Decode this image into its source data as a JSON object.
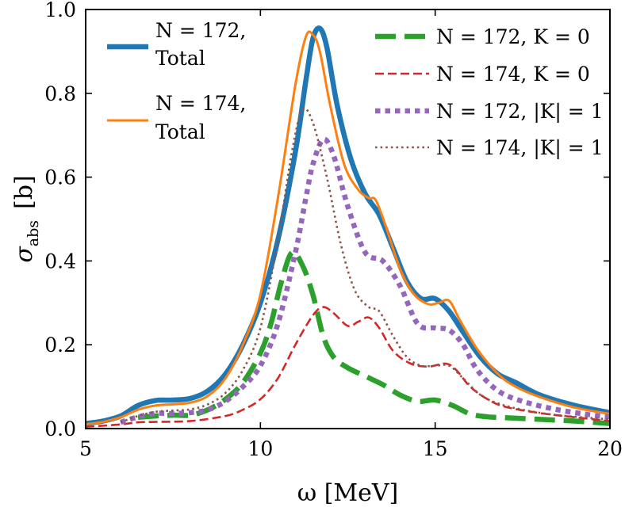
{
  "chart_data": {
    "type": "line",
    "title": "",
    "xlabel": "ω  [MeV]",
    "ylabel": "σ_abs  [b]",
    "ylabel_main": "σ",
    "ylabel_sub": "abs",
    "ylabel_unit": "[b]",
    "xlim": [
      5,
      20
    ],
    "ylim": [
      0.0,
      1.0
    ],
    "xticks": [
      5,
      10,
      15,
      20
    ],
    "xtick_labels": [
      "5",
      "10",
      "15",
      "20"
    ],
    "yticks": [
      0.0,
      0.2,
      0.4,
      0.6,
      0.8,
      1.0
    ],
    "ytick_labels": [
      "0.0",
      "0.2",
      "0.4",
      "0.6",
      "0.8",
      "1.0"
    ],
    "grid": false,
    "legend_placement": "top (two columns)",
    "series": [
      {
        "name": "N = 172, Total",
        "legend_line1": "N = 172,",
        "legend_line2": "Total",
        "color": "#1f77b4",
        "style": "solid-thick",
        "points": [
          [
            5,
            0.012
          ],
          [
            5.5,
            0.018
          ],
          [
            6,
            0.03
          ],
          [
            6.5,
            0.055
          ],
          [
            7,
            0.067
          ],
          [
            7.5,
            0.068
          ],
          [
            8,
            0.072
          ],
          [
            8.5,
            0.09
          ],
          [
            9,
            0.13
          ],
          [
            9.5,
            0.2
          ],
          [
            10,
            0.3
          ],
          [
            10.5,
            0.45
          ],
          [
            11,
            0.66
          ],
          [
            11.3,
            0.83
          ],
          [
            11.5,
            0.93
          ],
          [
            11.7,
            0.955
          ],
          [
            11.9,
            0.91
          ],
          [
            12.2,
            0.77
          ],
          [
            12.6,
            0.64
          ],
          [
            13,
            0.56
          ],
          [
            13.4,
            0.51
          ],
          [
            13.8,
            0.43
          ],
          [
            14.2,
            0.35
          ],
          [
            14.6,
            0.31
          ],
          [
            15,
            0.31
          ],
          [
            15.4,
            0.28
          ],
          [
            15.8,
            0.23
          ],
          [
            16.3,
            0.17
          ],
          [
            16.8,
            0.13
          ],
          [
            17.3,
            0.11
          ],
          [
            18,
            0.08
          ],
          [
            19,
            0.055
          ],
          [
            20,
            0.038
          ]
        ]
      },
      {
        "name": "N = 174, Total",
        "legend_line1": "N = 174,",
        "legend_line2": "Total",
        "color": "#ff7f0e",
        "style": "solid-thin",
        "points": [
          [
            5,
            0.01
          ],
          [
            5.5,
            0.016
          ],
          [
            6,
            0.027
          ],
          [
            6.5,
            0.045
          ],
          [
            7,
            0.055
          ],
          [
            7.5,
            0.058
          ],
          [
            8,
            0.062
          ],
          [
            8.5,
            0.078
          ],
          [
            9,
            0.12
          ],
          [
            9.5,
            0.2
          ],
          [
            10,
            0.32
          ],
          [
            10.5,
            0.55
          ],
          [
            11,
            0.82
          ],
          [
            11.3,
            0.935
          ],
          [
            11.5,
            0.94
          ],
          [
            11.7,
            0.9
          ],
          [
            12,
            0.77
          ],
          [
            12.4,
            0.63
          ],
          [
            12.8,
            0.57
          ],
          [
            13.1,
            0.55
          ],
          [
            13.3,
            0.545
          ],
          [
            13.6,
            0.48
          ],
          [
            14,
            0.38
          ],
          [
            14.4,
            0.32
          ],
          [
            14.8,
            0.297
          ],
          [
            15.1,
            0.3
          ],
          [
            15.4,
            0.305
          ],
          [
            15.7,
            0.26
          ],
          [
            16.2,
            0.19
          ],
          [
            16.8,
            0.13
          ],
          [
            17.3,
            0.1
          ],
          [
            18,
            0.075
          ],
          [
            19,
            0.05
          ],
          [
            20,
            0.035
          ]
        ]
      },
      {
        "name": "N = 172, K = 0",
        "legend_line1": "N = 172, K = 0",
        "color": "#2ca02c",
        "style": "dashed-thick",
        "points": [
          [
            6.5,
            0.027
          ],
          [
            7,
            0.03
          ],
          [
            7.5,
            0.032
          ],
          [
            8,
            0.032
          ],
          [
            8.5,
            0.045
          ],
          [
            9,
            0.07
          ],
          [
            9.5,
            0.11
          ],
          [
            10,
            0.18
          ],
          [
            10.3,
            0.25
          ],
          [
            10.6,
            0.35
          ],
          [
            10.9,
            0.42
          ],
          [
            11.2,
            0.39
          ],
          [
            11.5,
            0.32
          ],
          [
            11.8,
            0.22
          ],
          [
            12.1,
            0.17
          ],
          [
            12.5,
            0.145
          ],
          [
            13,
            0.125
          ],
          [
            13.5,
            0.105
          ],
          [
            14,
            0.08
          ],
          [
            14.5,
            0.065
          ],
          [
            15,
            0.068
          ],
          [
            15.5,
            0.055
          ],
          [
            16,
            0.035
          ],
          [
            16.5,
            0.028
          ],
          [
            17,
            0.026
          ],
          [
            18,
            0.022
          ],
          [
            19,
            0.018
          ],
          [
            20,
            0.012
          ]
        ]
      },
      {
        "name": "N = 174, K = 0",
        "legend_line1": "N = 174, K = 0",
        "color": "#d62728",
        "style": "dashed-thin",
        "points": [
          [
            5,
            0.004
          ],
          [
            6,
            0.01
          ],
          [
            6.5,
            0.015
          ],
          [
            7,
            0.016
          ],
          [
            8,
            0.018
          ],
          [
            9,
            0.03
          ],
          [
            9.5,
            0.045
          ],
          [
            10,
            0.07
          ],
          [
            10.5,
            0.12
          ],
          [
            11,
            0.2
          ],
          [
            11.5,
            0.27
          ],
          [
            11.8,
            0.29
          ],
          [
            12.1,
            0.275
          ],
          [
            12.5,
            0.245
          ],
          [
            12.8,
            0.255
          ],
          [
            13.1,
            0.265
          ],
          [
            13.4,
            0.24
          ],
          [
            13.8,
            0.185
          ],
          [
            14.3,
            0.155
          ],
          [
            14.8,
            0.148
          ],
          [
            15.3,
            0.155
          ],
          [
            15.6,
            0.14
          ],
          [
            16,
            0.1
          ],
          [
            16.5,
            0.07
          ],
          [
            17,
            0.052
          ],
          [
            18,
            0.037
          ],
          [
            19,
            0.027
          ],
          [
            20,
            0.018
          ]
        ]
      },
      {
        "name": "N = 172, |K| = 1",
        "legend_line1": "N = 172, |K| = 1",
        "color": "#9467bd",
        "style": "dotted-thick",
        "points": [
          [
            6,
            0.015
          ],
          [
            6.5,
            0.028
          ],
          [
            7,
            0.036
          ],
          [
            7.5,
            0.036
          ],
          [
            8,
            0.038
          ],
          [
            8.5,
            0.045
          ],
          [
            9,
            0.065
          ],
          [
            9.5,
            0.1
          ],
          [
            10,
            0.15
          ],
          [
            10.5,
            0.25
          ],
          [
            11,
            0.42
          ],
          [
            11.3,
            0.55
          ],
          [
            11.5,
            0.63
          ],
          [
            11.8,
            0.69
          ],
          [
            12.1,
            0.65
          ],
          [
            12.5,
            0.53
          ],
          [
            13,
            0.42
          ],
          [
            13.5,
            0.4
          ],
          [
            14,
            0.34
          ],
          [
            14.5,
            0.25
          ],
          [
            15,
            0.24
          ],
          [
            15.4,
            0.235
          ],
          [
            15.8,
            0.2
          ],
          [
            16.2,
            0.14
          ],
          [
            16.8,
            0.09
          ],
          [
            17.5,
            0.065
          ],
          [
            18.5,
            0.045
          ],
          [
            19.5,
            0.032
          ],
          [
            20,
            0.028
          ]
        ]
      },
      {
        "name": "N = 174, |K| = 1",
        "legend_line1": "N = 174, |K| = 1",
        "color": "#8c564b",
        "style": "dotted-thin",
        "points": [
          [
            6,
            0.015
          ],
          [
            6.5,
            0.03
          ],
          [
            7,
            0.04
          ],
          [
            7.5,
            0.043
          ],
          [
            8,
            0.046
          ],
          [
            8.5,
            0.058
          ],
          [
            9,
            0.085
          ],
          [
            9.5,
            0.14
          ],
          [
            10,
            0.24
          ],
          [
            10.5,
            0.45
          ],
          [
            10.9,
            0.66
          ],
          [
            11.2,
            0.76
          ],
          [
            11.5,
            0.73
          ],
          [
            11.9,
            0.6
          ],
          [
            12.3,
            0.44
          ],
          [
            12.7,
            0.33
          ],
          [
            13.1,
            0.29
          ],
          [
            13.4,
            0.28
          ],
          [
            13.8,
            0.22
          ],
          [
            14.2,
            0.17
          ],
          [
            14.6,
            0.15
          ],
          [
            15,
            0.15
          ],
          [
            15.4,
            0.15
          ],
          [
            15.8,
            0.12
          ],
          [
            16.3,
            0.08
          ],
          [
            16.8,
            0.06
          ],
          [
            17.5,
            0.045
          ],
          [
            18.5,
            0.032
          ],
          [
            20,
            0.022
          ]
        ]
      }
    ]
  }
}
